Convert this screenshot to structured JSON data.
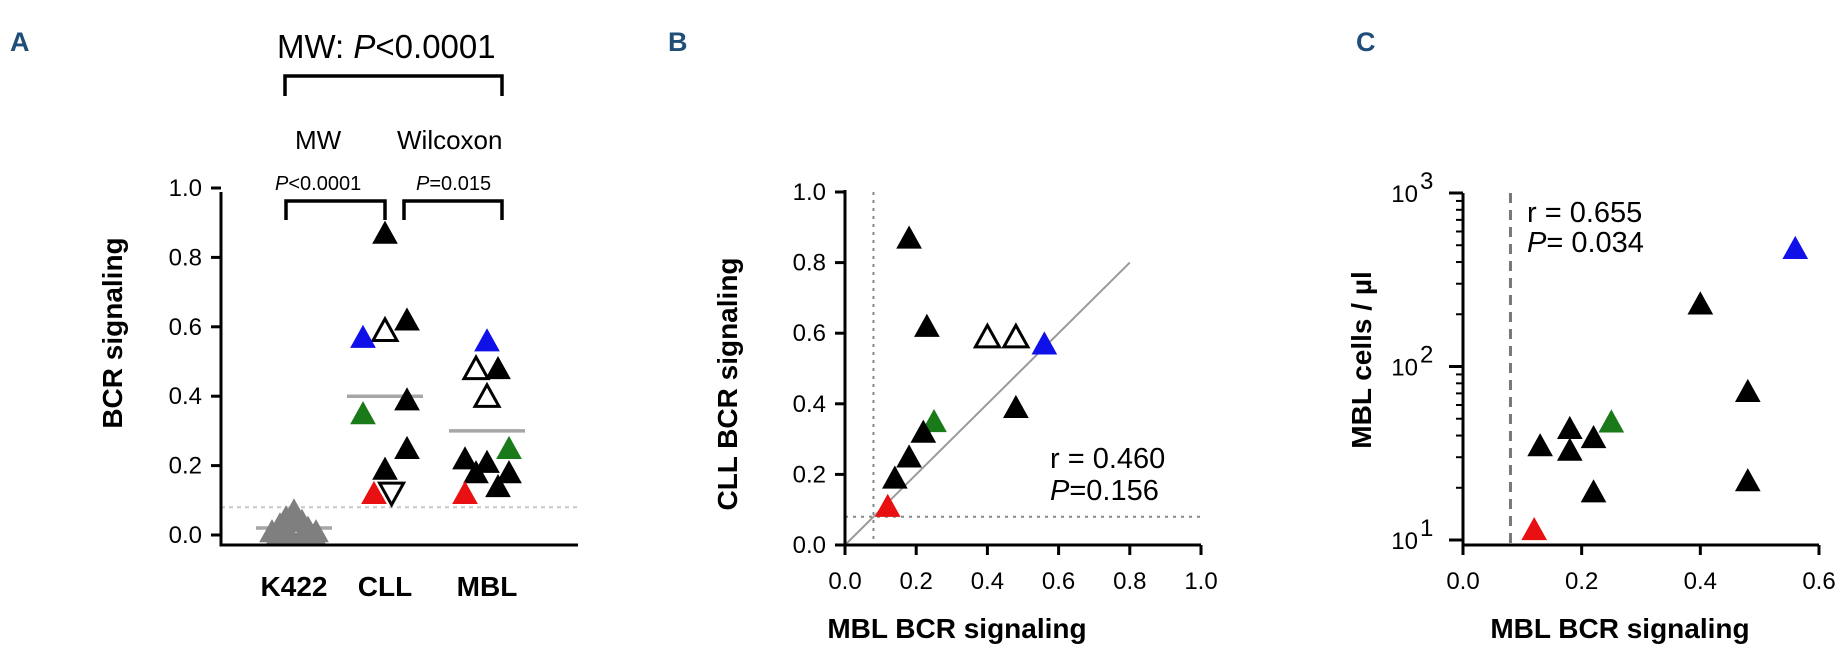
{
  "panels": {
    "a": "A",
    "b": "B",
    "c": "C"
  },
  "colors": {
    "black": "#000000",
    "gray": "#7f7f7f",
    "blue": "#1010e8",
    "green": "#1a7a1a",
    "red": "#e81010",
    "median": "#a6a6a6",
    "panel": "#1f4e79"
  },
  "annotations": {
    "mw_top": "MW: ",
    "p_italic": "P",
    "mw_top_value": "<0.0001",
    "mw": "MW",
    "wilcoxon": "Wilcoxon",
    "p1_value": "<0.0001",
    "p2_value": "=0.015",
    "b_r": "r = 0.460",
    "b_p": "=0.156",
    "c_r": "r = 0.655",
    "c_p": "= 0.034"
  },
  "chart_data": [
    {
      "id": "A",
      "type": "scatter",
      "title": "",
      "xlabel": "",
      "ylabel": "BCR signaling",
      "categories": [
        "K422",
        "CLL",
        "MBL"
      ],
      "ylim": [
        0,
        1.0
      ],
      "yticks": [
        0.0,
        0.2,
        0.4,
        0.6,
        0.8,
        1.0
      ],
      "threshold_y": 0.08,
      "medians": [
        0.02,
        0.4,
        0.3
      ],
      "points": [
        {
          "cat": "K422",
          "y": 0.07,
          "fill": "gray",
          "shape": "up"
        },
        {
          "cat": "K422",
          "y": 0.05,
          "fill": "gray",
          "shape": "up"
        },
        {
          "cat": "K422",
          "y": 0.04,
          "fill": "gray",
          "shape": "up"
        },
        {
          "cat": "K422",
          "y": 0.03,
          "fill": "gray",
          "shape": "up"
        },
        {
          "cat": "K422",
          "y": 0.02,
          "fill": "gray",
          "shape": "up"
        },
        {
          "cat": "K422",
          "y": 0.01,
          "fill": "gray",
          "shape": "up"
        },
        {
          "cat": "K422",
          "y": 0.01,
          "fill": "gray",
          "shape": "up"
        },
        {
          "cat": "K422",
          "y": 0.0,
          "fill": "gray",
          "shape": "up"
        },
        {
          "cat": "K422",
          "y": 0.0,
          "fill": "gray",
          "shape": "up"
        },
        {
          "cat": "K422",
          "y": 0.0,
          "fill": "gray",
          "shape": "up"
        },
        {
          "cat": "K422",
          "y": 0.0,
          "fill": "gray",
          "shape": "up"
        },
        {
          "cat": "CLL",
          "y": 0.87,
          "fill": "black",
          "shape": "up",
          "dx": 0
        },
        {
          "cat": "CLL",
          "y": 0.62,
          "fill": "black",
          "shape": "up",
          "dx": 1
        },
        {
          "cat": "CLL",
          "y": 0.59,
          "fill": "open",
          "shape": "up",
          "dx": 0
        },
        {
          "cat": "CLL",
          "y": 0.57,
          "fill": "blue",
          "shape": "up",
          "dx": -1
        },
        {
          "cat": "CLL",
          "y": 0.39,
          "fill": "black",
          "shape": "up",
          "dx": 1
        },
        {
          "cat": "CLL",
          "y": 0.35,
          "fill": "green",
          "shape": "up",
          "dx": -1
        },
        {
          "cat": "CLL",
          "y": 0.25,
          "fill": "black",
          "shape": "up",
          "dx": 1
        },
        {
          "cat": "CLL",
          "y": 0.19,
          "fill": "black",
          "shape": "up",
          "dx": 0
        },
        {
          "cat": "CLL",
          "y": 0.12,
          "fill": "red",
          "shape": "up",
          "dx": -0.5
        },
        {
          "cat": "CLL",
          "y": 0.12,
          "fill": "open",
          "shape": "down",
          "dx": 0.3
        },
        {
          "cat": "MBL",
          "y": 0.56,
          "fill": "blue",
          "shape": "up",
          "dx": 0
        },
        {
          "cat": "MBL",
          "y": 0.48,
          "fill": "open",
          "shape": "up",
          "dx": -0.5
        },
        {
          "cat": "MBL",
          "y": 0.48,
          "fill": "black",
          "shape": "up",
          "dx": 0.5
        },
        {
          "cat": "MBL",
          "y": 0.4,
          "fill": "open",
          "shape": "up",
          "dx": 0
        },
        {
          "cat": "MBL",
          "y": 0.25,
          "fill": "green",
          "shape": "up",
          "dx": 1
        },
        {
          "cat": "MBL",
          "y": 0.22,
          "fill": "black",
          "shape": "up",
          "dx": -1
        },
        {
          "cat": "MBL",
          "y": 0.21,
          "fill": "black",
          "shape": "up",
          "dx": 0
        },
        {
          "cat": "MBL",
          "y": 0.18,
          "fill": "black",
          "shape": "up",
          "dx": 1
        },
        {
          "cat": "MBL",
          "y": 0.18,
          "fill": "black",
          "shape": "up",
          "dx": -0.5
        },
        {
          "cat": "MBL",
          "y": 0.14,
          "fill": "black",
          "shape": "up",
          "dx": 0.5
        },
        {
          "cat": "MBL",
          "y": 0.12,
          "fill": "red",
          "shape": "up",
          "dx": -1
        }
      ]
    },
    {
      "id": "B",
      "type": "scatter",
      "title": "",
      "xlabel": "MBL BCR signaling",
      "ylabel": "CLL BCR signaling",
      "xlim": [
        0,
        1.0
      ],
      "ylim": [
        0,
        1.0
      ],
      "xticks": [
        0.0,
        0.2,
        0.4,
        0.6,
        0.8,
        1.0
      ],
      "yticks": [
        0.0,
        0.2,
        0.4,
        0.6,
        0.8,
        1.0
      ],
      "threshold": 0.08,
      "identity_line": [
        [
          0,
          0
        ],
        [
          0.8,
          0.8
        ]
      ],
      "r": 0.46,
      "p": 0.156,
      "points": [
        {
          "x": 0.18,
          "y": 0.87,
          "fill": "black"
        },
        {
          "x": 0.23,
          "y": 0.62,
          "fill": "black"
        },
        {
          "x": 0.4,
          "y": 0.59,
          "fill": "open"
        },
        {
          "x": 0.48,
          "y": 0.59,
          "fill": "open"
        },
        {
          "x": 0.56,
          "y": 0.57,
          "fill": "blue"
        },
        {
          "x": 0.48,
          "y": 0.39,
          "fill": "black"
        },
        {
          "x": 0.25,
          "y": 0.35,
          "fill": "green"
        },
        {
          "x": 0.22,
          "y": 0.32,
          "fill": "black"
        },
        {
          "x": 0.18,
          "y": 0.25,
          "fill": "black"
        },
        {
          "x": 0.14,
          "y": 0.19,
          "fill": "black"
        },
        {
          "x": 0.12,
          "y": 0.11,
          "fill": "red"
        }
      ]
    },
    {
      "id": "C",
      "type": "scatter",
      "title": "",
      "xlabel": "MBL BCR signaling",
      "ylabel": "MBL cells / µl",
      "xlim": [
        0,
        0.6
      ],
      "ylim": [
        10,
        1000
      ],
      "yscale": "log",
      "xticks": [
        0.0,
        0.2,
        0.4,
        0.6
      ],
      "yticks_exp": [
        1,
        2,
        3
      ],
      "threshold_x": 0.08,
      "r": 0.655,
      "p": 0.034,
      "points": [
        {
          "x": 0.56,
          "y": 480,
          "fill": "blue"
        },
        {
          "x": 0.4,
          "y": 230,
          "fill": "black"
        },
        {
          "x": 0.48,
          "y": 72,
          "fill": "black"
        },
        {
          "x": 0.25,
          "y": 48,
          "fill": "green"
        },
        {
          "x": 0.18,
          "y": 44,
          "fill": "black"
        },
        {
          "x": 0.22,
          "y": 39,
          "fill": "black"
        },
        {
          "x": 0.13,
          "y": 35,
          "fill": "black"
        },
        {
          "x": 0.18,
          "y": 33,
          "fill": "black"
        },
        {
          "x": 0.48,
          "y": 22,
          "fill": "black"
        },
        {
          "x": 0.22,
          "y": 19,
          "fill": "black"
        },
        {
          "x": 0.12,
          "y": 11.5,
          "fill": "red"
        }
      ]
    }
  ]
}
